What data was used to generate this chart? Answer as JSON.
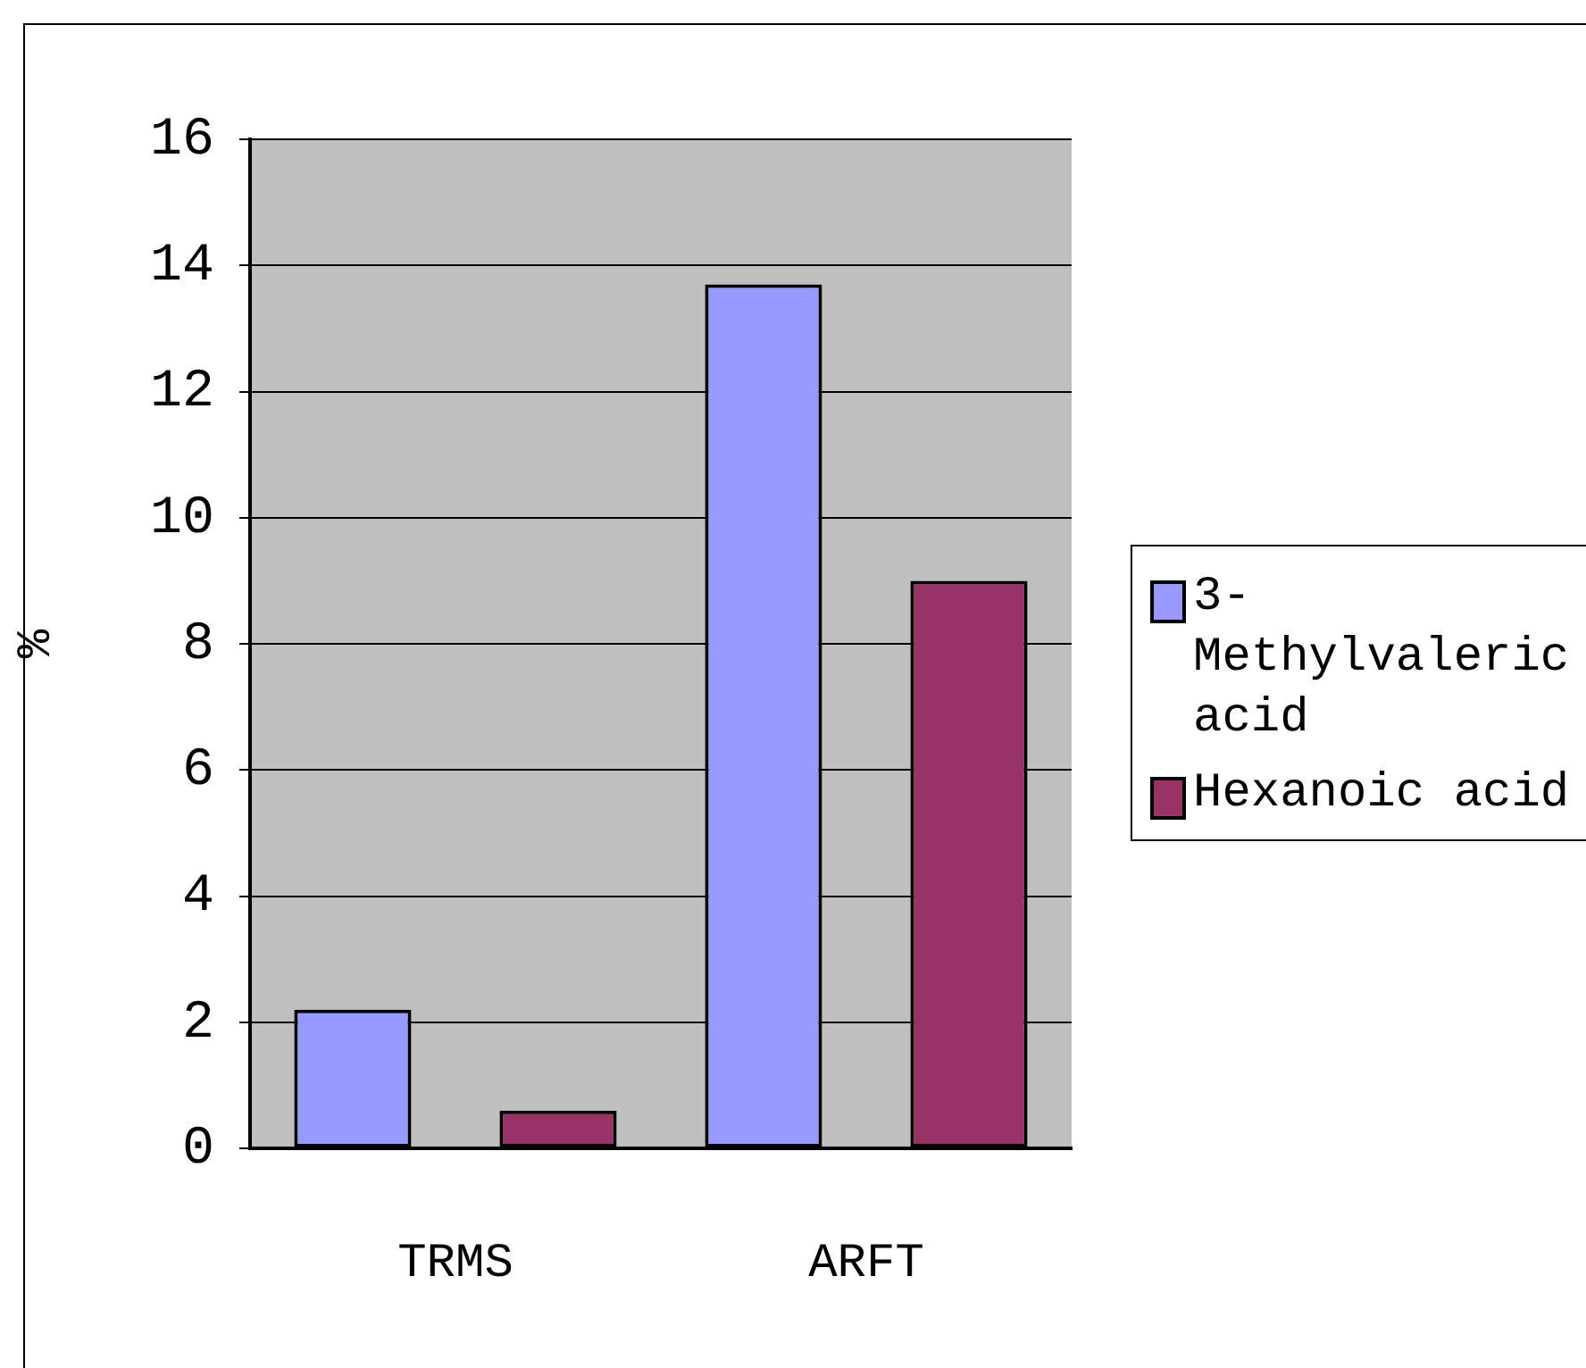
{
  "chart_data": {
    "type": "bar",
    "ylabel": "%",
    "categories": [
      "TRMS",
      "ARFT"
    ],
    "series": [
      {
        "name": "3-Methylvaleric acid",
        "color": "#9999ff",
        "values": [
          2.2,
          13.7
        ]
      },
      {
        "name": "Hexanoic acid",
        "color": "#993366",
        "values": [
          0.6,
          9.0
        ]
      }
    ],
    "ylim": [
      0,
      16
    ],
    "yticks": [
      0,
      2,
      4,
      6,
      8,
      10,
      12,
      14,
      16
    ],
    "grid": "y",
    "legend": "right"
  }
}
